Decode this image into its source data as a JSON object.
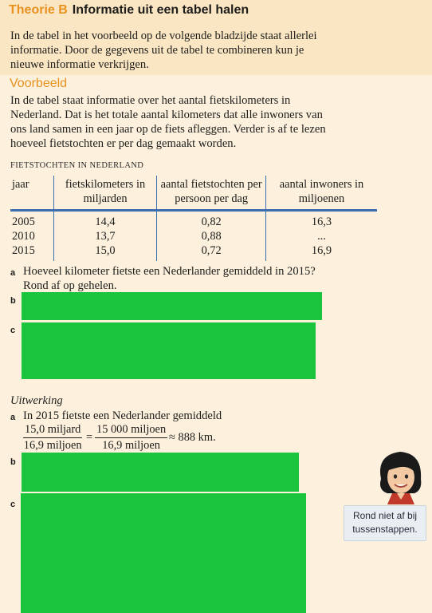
{
  "header": {
    "lead": "Theorie B",
    "title": "Informatie uit een tabel halen",
    "intro": "In de tabel in het voorbeeld op de volgende bladzijde staat allerlei informatie. Door de gegevens uit de tabel te combineren kun je nieuwe informatie verkrijgen."
  },
  "voorbeeld": {
    "heading": "Voorbeeld",
    "text": "In de tabel staat informatie over het aantal fietskilometers in Nederland. Dat is het totale aantal kilometers dat alle inwoners van ons land samen in een jaar op de fiets afleggen. Verder is af te lezen hoeveel fietstochten er per dag gemaakt worden."
  },
  "table": {
    "caption": "FIETSTOCHTEN IN NEDERLAND",
    "headers": [
      "jaar",
      "fietskilometers in miljarden",
      "aantal fietstochten per persoon per dag",
      "aantal inwoners in miljoenen"
    ],
    "rows": [
      [
        "2005",
        "14,4",
        "0,82",
        "16,3"
      ],
      [
        "2010",
        "13,7",
        "0,88",
        "..."
      ],
      [
        "2015",
        "15,0",
        "0,72",
        "16,9"
      ]
    ]
  },
  "questions": {
    "a_label": "a",
    "a_text": "Hoeveel kilometer fietste een Nederlander gemiddeld in 2015? Rond af op gehelen.",
    "b_label": "b",
    "c_label": "c"
  },
  "uitwerking": {
    "heading": "Uitwerking",
    "a_label": "a",
    "a_text": "In 2015 fietste een Nederlander gemiddeld",
    "frac1_num": "15,0 miljard",
    "frac1_den": "16,9 miljoen",
    "equals": "=",
    "frac2_num": "15 000 miljoen",
    "frac2_den": "16,9 miljoen",
    "result": "≈ 888 km.",
    "b_label": "b",
    "c_label": "c"
  },
  "tip": {
    "line1": "Rond niet af bij",
    "line2": "tussenstappen."
  },
  "colors": {
    "accent": "#e8911c",
    "table_rule": "#3b6fae",
    "redaction": "#1bc43d"
  }
}
